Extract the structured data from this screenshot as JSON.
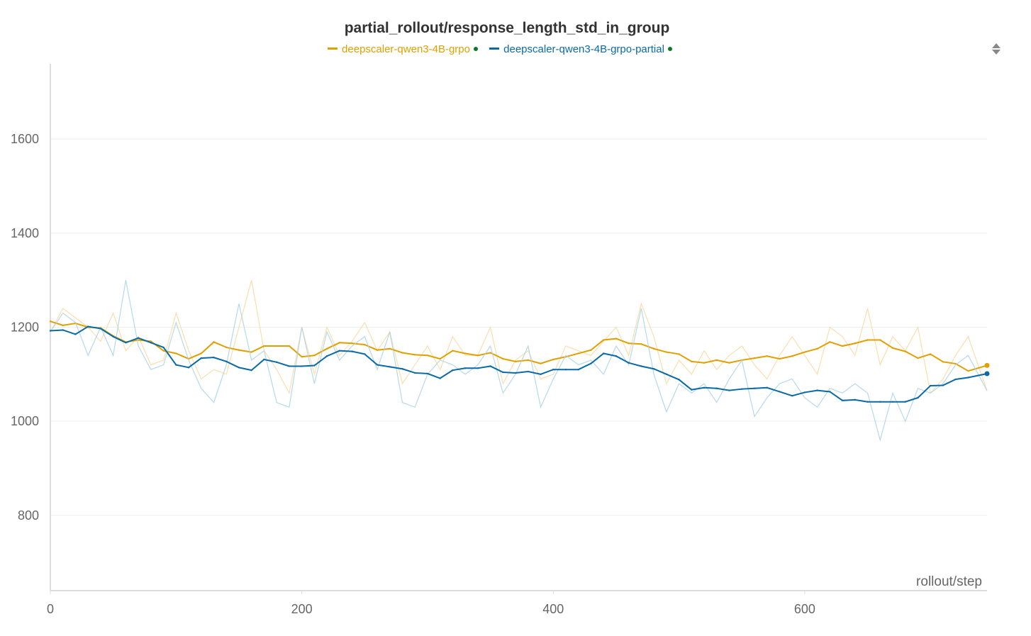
{
  "chart_data": {
    "type": "line",
    "title": "partial_rollout/response_length_std_in_group",
    "xlabel": "rollout/step",
    "ylabel": "",
    "xlim": [
      0,
      745
    ],
    "ylim": [
      640,
      1760
    ],
    "x_ticks": [
      0,
      200,
      400,
      600
    ],
    "y_ticks": [
      800,
      1000,
      1200,
      1400,
      1600
    ],
    "grid": true,
    "legend_position": "top-center",
    "series": [
      {
        "name": "deepscaler-qwen3-4B-grpo",
        "color": "#e0a000",
        "raw_color": "#f7d9a0",
        "x": [
          0,
          10,
          20,
          30,
          40,
          50,
          60,
          70,
          80,
          90,
          100,
          110,
          120,
          130,
          140,
          150,
          160,
          170,
          180,
          190,
          200,
          210,
          220,
          230,
          240,
          250,
          260,
          270,
          280,
          290,
          300,
          310,
          320,
          330,
          340,
          350,
          360,
          370,
          380,
          390,
          400,
          410,
          420,
          430,
          440,
          450,
          460,
          470,
          480,
          490,
          500,
          510,
          520,
          530,
          540,
          550,
          560,
          570,
          580,
          590,
          600,
          610,
          620,
          630,
          640,
          650,
          660,
          670,
          680,
          690,
          700,
          710,
          720,
          730,
          745
        ],
        "values": [
          1190,
          1240,
          1220,
          1200,
          1170,
          1230,
          1150,
          1180,
          1120,
          1130,
          1230,
          1150,
          1090,
          1110,
          1100,
          1200,
          1300,
          1150,
          1110,
          1060,
          1200,
          1100,
          1200,
          1140,
          1170,
          1210,
          1150,
          1190,
          1080,
          1120,
          1160,
          1110,
          1180,
          1140,
          1140,
          1200,
          1080,
          1130,
          1150,
          1090,
          1100,
          1160,
          1150,
          1140,
          1170,
          1200,
          1140,
          1250,
          1180,
          1080,
          1130,
          1100,
          1150,
          1110,
          1140,
          1160,
          1120,
          1090,
          1140,
          1180,
          1140,
          1100,
          1200,
          1180,
          1140,
          1240,
          1120,
          1180,
          1150,
          1200,
          1060,
          1090,
          1140,
          1180,
          1065
        ],
        "smoothing_window": 3
      },
      {
        "name": "deepscaler-qwen3-4B-grpo-partial",
        "color": "#0a6aa6",
        "raw_color": "#a9d2e6",
        "x": [
          0,
          10,
          20,
          30,
          40,
          50,
          60,
          70,
          80,
          90,
          100,
          110,
          120,
          130,
          140,
          150,
          160,
          170,
          180,
          190,
          200,
          210,
          220,
          230,
          240,
          250,
          260,
          270,
          280,
          290,
          300,
          310,
          320,
          330,
          340,
          350,
          360,
          370,
          380,
          390,
          400,
          410,
          420,
          430,
          440,
          450,
          460,
          470,
          480,
          490,
          500,
          510,
          520,
          530,
          540,
          550,
          560,
          570,
          580,
          590,
          600,
          610,
          620,
          630,
          640,
          650,
          660,
          670,
          680,
          690,
          700,
          710,
          720,
          730,
          745
        ],
        "values": [
          1190,
          1230,
          1210,
          1140,
          1200,
          1140,
          1300,
          1160,
          1110,
          1120,
          1210,
          1130,
          1070,
          1040,
          1120,
          1250,
          1130,
          1150,
          1040,
          1030,
          1200,
          1080,
          1190,
          1130,
          1160,
          1180,
          1110,
          1190,
          1040,
          1030,
          1100,
          1130,
          1120,
          1100,
          1120,
          1160,
          1060,
          1100,
          1160,
          1030,
          1090,
          1140,
          1120,
          1130,
          1100,
          1160,
          1120,
          1240,
          1100,
          1020,
          1080,
          1060,
          1080,
          1040,
          1090,
          1130,
          1010,
          1050,
          1080,
          1090,
          1050,
          1030,
          1070,
          1060,
          1080,
          1060,
          960,
          1060,
          1000,
          1070,
          1060,
          1080,
          1120,
          1140,
          1065
        ],
        "smoothing_window": 3
      }
    ]
  },
  "colors": {
    "grid": "#eeeeee",
    "axis": "#dddddd",
    "end_dot": "#0a7a2a"
  },
  "icons": {
    "sort_handle": "sort-arrows-icon",
    "status_dot": "status-dot-icon"
  }
}
